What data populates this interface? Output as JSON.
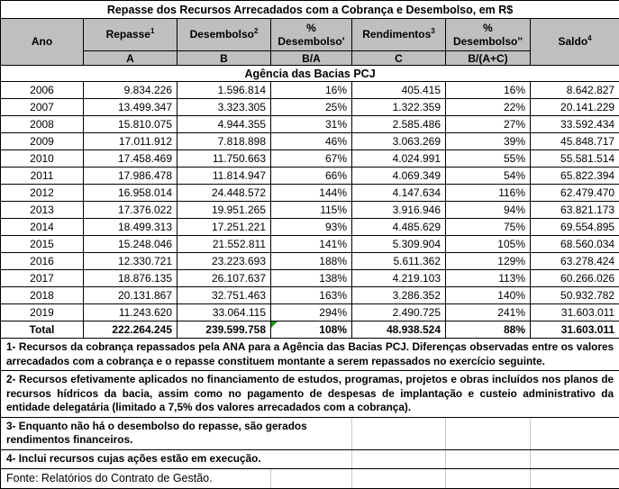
{
  "title": "Repasse dos Recursos Arrecadados com a Cobrança e Desembolso, em R$",
  "colors": {
    "header_bg": "#bfbfbf",
    "border_black": "#000000",
    "grid_gray": "#c9c9c9",
    "flag_green": "#1a9c1a"
  },
  "table": {
    "headers": [
      {
        "label": "Ano",
        "sup": "",
        "sub": ""
      },
      {
        "label": "Repasse",
        "sup": "1",
        "sub": "A"
      },
      {
        "label": "Desembolso",
        "sup": "2",
        "sub": "B"
      },
      {
        "label": "% Desembolso'",
        "sup": "",
        "sub": "B/A"
      },
      {
        "label": "Rendimentos",
        "sup": "3",
        "sub": "C"
      },
      {
        "label": "% Desembolso''",
        "sup": "",
        "sub": "B/(A+C)"
      },
      {
        "label": "Saldo",
        "sup": "4",
        "sub": ""
      }
    ],
    "section": "Agência das Bacias PCJ",
    "rows": [
      [
        "2006",
        "9.834.226",
        "1.596.814",
        "16%",
        "405.415",
        "16%",
        "8.642.827"
      ],
      [
        "2007",
        "13.499.347",
        "3.323.305",
        "25%",
        "1.322.359",
        "22%",
        "20.141.229"
      ],
      [
        "2008",
        "15.810.075",
        "4.944.355",
        "31%",
        "2.585.486",
        "27%",
        "33.592.434"
      ],
      [
        "2009",
        "17.011.912",
        "7.818.898",
        "46%",
        "3.063.269",
        "39%",
        "45.848.717"
      ],
      [
        "2010",
        "17.458.469",
        "11.750.663",
        "67%",
        "4.024.991",
        "55%",
        "55.581.514"
      ],
      [
        "2011",
        "17.986.478",
        "11.814.947",
        "66%",
        "4.069.349",
        "54%",
        "65.822.394"
      ],
      [
        "2012",
        "16.958.014",
        "24.448.572",
        "144%",
        "4.147.634",
        "116%",
        "62.479.470"
      ],
      [
        "2013",
        "17.376.022",
        "19.951.265",
        "115%",
        "3.916.946",
        "94%",
        "63.821.173"
      ],
      [
        "2014",
        "18.499.313",
        "17.251.221",
        "93%",
        "4.485.629",
        "75%",
        "69.554.895"
      ],
      [
        "2015",
        "15.248.046",
        "21.552.811",
        "141%",
        "5.309.904",
        "105%",
        "68.560.034"
      ],
      [
        "2016",
        "12.330.721",
        "23.223.693",
        "188%",
        "5.611.362",
        "129%",
        "63.278.424"
      ],
      [
        "2017",
        "18.876.135",
        "26.107.637",
        "138%",
        "4.219.103",
        "113%",
        "60.266.026"
      ],
      [
        "2018",
        "20.131.867",
        "32.751.463",
        "163%",
        "3.286.352",
        "140%",
        "50.932.782"
      ],
      [
        "2019",
        "11.243.620",
        "33.064.115",
        "294%",
        "2.490.725",
        "241%",
        "31.603.011"
      ]
    ],
    "total": [
      "Total",
      "222.264.245",
      "239.599.758",
      "108%",
      "48.938.524",
      "88%",
      "31.603.011"
    ]
  },
  "footnotes": [
    "1- Recursos da cobrança repassados pela ANA para a Agência das Bacias PCJ. Diferenças observadas entre os valores arrecadados com a cobrança e o repasse constituem montante a serem repassados no exercício seguinte.",
    "2- Recursos efetivamente aplicados no financiamento de estudos, programas, projetos e obras incluídos nos planos de recursos hídricos da bacia, assim como no pagamento de despesas de implantação e custeio administrativo da entidade delegatária  (limitado a 7,5% dos valores arrecadados com a cobrança).",
    "3- Enquanto não há o desembolso do repasse, são gerados rendimentos financeiros.",
    "4- Inclui recursos cujas ações estão em execução."
  ],
  "fonte": "Fonte: Relatórios do Contrato de Gestão."
}
